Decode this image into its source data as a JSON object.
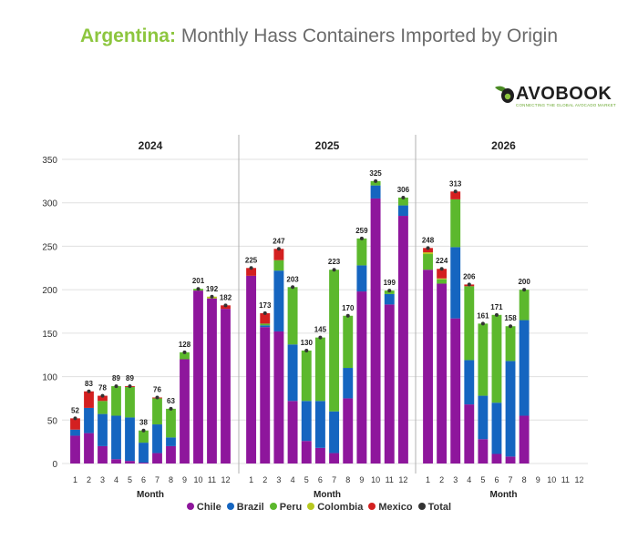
{
  "title": {
    "country": "Argentina:",
    "rest": "Monthly Hass Containers Imported by Origin"
  },
  "logo": {
    "word": "AVOBOOK",
    "tagline": "CONNECTING THE GLOBAL AVOCADO MARKET"
  },
  "colors": {
    "Chile": "#8e169c",
    "Brazil": "#1565c0",
    "Peru": "#5cb82d",
    "Colombia": "#b7c820",
    "Mexico": "#d32020",
    "Total": "#333333",
    "grid": "#e0e0e0",
    "divider": "#b0b0b0"
  },
  "legend": [
    "Chile",
    "Brazil",
    "Peru",
    "Colombia",
    "Mexico",
    "Total"
  ],
  "chart_data": {
    "type": "bar",
    "stacked": true,
    "xlabel": "Month",
    "ylim": [
      0,
      350
    ],
    "yticks": [
      0,
      50,
      100,
      150,
      200,
      250,
      300,
      350
    ],
    "grid": true,
    "legend_position": "bottom",
    "series_order": [
      "Chile",
      "Brazil",
      "Peru",
      "Colombia",
      "Mexico"
    ],
    "panels": [
      {
        "title": "2024",
        "months": [
          "1",
          "2",
          "3",
          "4",
          "5",
          "6",
          "7",
          "8",
          "9",
          "10",
          "11",
          "12"
        ],
        "series": [
          {
            "name": "Chile",
            "values": [
              32,
              35,
              20,
              5,
              3,
              1,
              12,
              20,
              120,
              199,
              190,
              178
            ]
          },
          {
            "name": "Brazil",
            "values": [
              7,
              29,
              37,
              50,
              50,
              23,
              33,
              10,
              0,
              0,
              0,
              0
            ]
          },
          {
            "name": "Peru",
            "values": [
              0,
              0,
              15,
              34,
              35,
              14,
              30,
              33,
              8,
              2,
              0,
              0
            ]
          },
          {
            "name": "Colombia",
            "values": [
              0,
              0,
              0,
              0,
              0,
              0,
              0,
              0,
              0,
              0,
              2,
              0
            ]
          },
          {
            "name": "Mexico",
            "values": [
              13,
              19,
              6,
              0,
              1,
              0,
              1,
              0,
              0,
              0,
              0,
              4
            ]
          }
        ],
        "totals": [
          52,
          83,
          78,
          89,
          89,
          38,
          76,
          63,
          128,
          201,
          192,
          182
        ]
      },
      {
        "title": "2025",
        "months": [
          "1",
          "2",
          "3",
          "4",
          "5",
          "6",
          "7",
          "8",
          "9",
          "10",
          "11",
          "12"
        ],
        "series": [
          {
            "name": "Chile",
            "values": [
              216,
              157,
              152,
              72,
              26,
              18,
              12,
              75,
              198,
              305,
              183,
              285
            ]
          },
          {
            "name": "Brazil",
            "values": [
              0,
              2,
              70,
              65,
              46,
              54,
              48,
              35,
              30,
              15,
              12,
              12
            ]
          },
          {
            "name": "Peru",
            "values": [
              0,
              2,
              12,
              66,
              58,
              73,
              163,
              60,
              31,
              5,
              4,
              9
            ]
          },
          {
            "name": "Colombia",
            "values": [
              0,
              0,
              0,
              0,
              0,
              0,
              0,
              0,
              0,
              0,
              0,
              0
            ]
          },
          {
            "name": "Mexico",
            "values": [
              9,
              12,
              13,
              0,
              0,
              0,
              0,
              0,
              0,
              0,
              0,
              0
            ]
          }
        ],
        "totals": [
          225,
          173,
          247,
          203,
          130,
          145,
          223,
          170,
          259,
          325,
          199,
          306
        ]
      },
      {
        "title": "2026",
        "months": [
          "1",
          "2",
          "3",
          "4",
          "5",
          "6",
          "7",
          "8",
          "9",
          "10",
          "11",
          "12"
        ],
        "series": [
          {
            "name": "Chile",
            "values": [
              223,
              207,
              167,
              68,
              28,
              11,
              8,
              55,
              0,
              0,
              0,
              0
            ]
          },
          {
            "name": "Brazil",
            "values": [
              0,
              0,
              82,
              51,
              50,
              59,
              110,
              110,
              0,
              0,
              0,
              0
            ]
          },
          {
            "name": "Peru",
            "values": [
              18,
              5,
              55,
              85,
              83,
              101,
              40,
              35,
              0,
              0,
              0,
              0
            ]
          },
          {
            "name": "Colombia",
            "values": [
              2,
              1,
              0,
              0,
              0,
              0,
              0,
              0,
              0,
              0,
              0,
              0
            ]
          },
          {
            "name": "Mexico",
            "values": [
              5,
              11,
              9,
              2,
              0,
              0,
              0,
              0,
              0,
              0,
              0,
              0
            ]
          }
        ],
        "totals": [
          248,
          224,
          313,
          206,
          161,
          171,
          158,
          200,
          null,
          null,
          null,
          null
        ]
      }
    ]
  }
}
